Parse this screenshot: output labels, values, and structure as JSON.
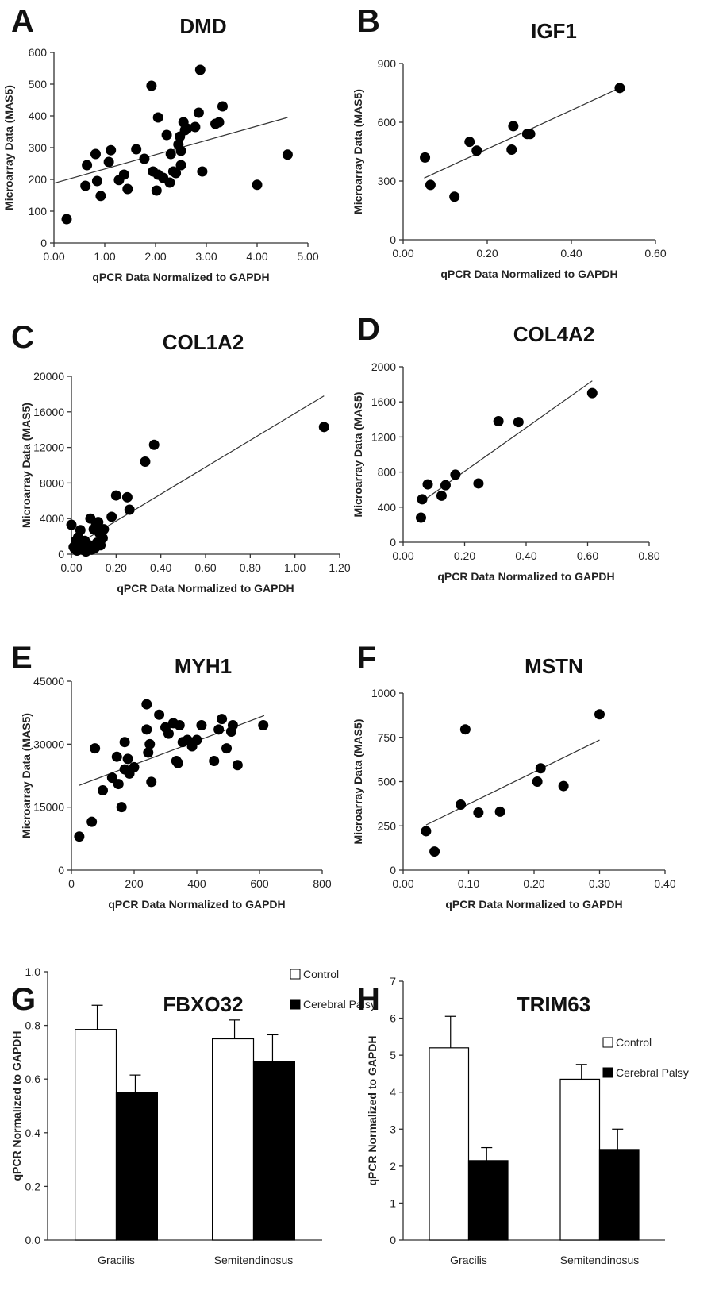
{
  "chart_data": [
    {
      "panel": "A",
      "title": "DMD",
      "type": "scatter",
      "xlabel": "qPCR Data Normalized to GAPDH",
      "ylabel": "Microarray Data (MAS5)",
      "xlim": [
        0,
        5
      ],
      "ylim": [
        0,
        600
      ],
      "xticks": [
        "0.00",
        "1.00",
        "2.00",
        "3.00",
        "4.00",
        "5.00"
      ],
      "yticks": [
        "0",
        "100",
        "200",
        "300",
        "400",
        "500",
        "600"
      ],
      "trendline": [
        [
          0,
          188
        ],
        [
          4.6,
          395
        ]
      ],
      "points": [
        [
          0.25,
          75
        ],
        [
          0.62,
          180
        ],
        [
          0.65,
          245
        ],
        [
          0.82,
          280
        ],
        [
          0.85,
          195
        ],
        [
          0.92,
          148
        ],
        [
          1.08,
          255
        ],
        [
          1.12,
          292
        ],
        [
          1.28,
          198
        ],
        [
          1.38,
          215
        ],
        [
          1.45,
          170
        ],
        [
          1.62,
          295
        ],
        [
          1.78,
          265
        ],
        [
          1.92,
          495
        ],
        [
          1.95,
          225
        ],
        [
          2.02,
          165
        ],
        [
          2.05,
          215
        ],
        [
          2.05,
          395
        ],
        [
          2.15,
          205
        ],
        [
          2.22,
          340
        ],
        [
          2.28,
          190
        ],
        [
          2.3,
          280
        ],
        [
          2.35,
          225
        ],
        [
          2.4,
          220
        ],
        [
          2.45,
          310
        ],
        [
          2.48,
          335
        ],
        [
          2.5,
          290
        ],
        [
          2.5,
          245
        ],
        [
          2.55,
          380
        ],
        [
          2.58,
          355
        ],
        [
          2.62,
          360
        ],
        [
          2.78,
          365
        ],
        [
          2.85,
          410
        ],
        [
          2.88,
          545
        ],
        [
          2.92,
          225
        ],
        [
          3.18,
          375
        ],
        [
          3.25,
          380
        ],
        [
          3.32,
          430
        ],
        [
          4.0,
          183
        ],
        [
          4.6,
          278
        ]
      ]
    },
    {
      "panel": "B",
      "title": "IGF1",
      "type": "scatter",
      "xlabel": "qPCR Data Normalized to GAPDH",
      "ylabel": "Microarray Data (MAS5)",
      "xlim": [
        0,
        0.6
      ],
      "ylim": [
        0,
        900
      ],
      "xticks": [
        "0.00",
        "0.20",
        "0.40",
        "0.60"
      ],
      "yticks": [
        "0",
        "300",
        "600",
        "900"
      ],
      "trendline": [
        [
          0.05,
          315
        ],
        [
          0.515,
          775
        ]
      ],
      "points": [
        [
          0.052,
          420
        ],
        [
          0.065,
          280
        ],
        [
          0.122,
          220
        ],
        [
          0.158,
          500
        ],
        [
          0.175,
          455
        ],
        [
          0.258,
          460
        ],
        [
          0.262,
          580
        ],
        [
          0.295,
          540
        ],
        [
          0.302,
          540
        ],
        [
          0.515,
          775
        ]
      ]
    },
    {
      "panel": "C",
      "title": "COL1A2",
      "type": "scatter",
      "xlabel": "qPCR Data Normalized to GAPDH",
      "ylabel": "Microarray Data (MAS5)",
      "xlim": [
        0,
        1.2
      ],
      "ylim": [
        0,
        20000
      ],
      "xticks": [
        "0.00",
        "0.20",
        "0.40",
        "0.60",
        "0.80",
        "1.00",
        "1.20"
      ],
      "yticks": [
        "0",
        "4000",
        "8000",
        "12000",
        "16000",
        "20000"
      ],
      "trendline": [
        [
          0,
          700
        ],
        [
          1.13,
          17800
        ]
      ],
      "points": [
        [
          0.0,
          3300
        ],
        [
          0.01,
          800
        ],
        [
          0.015,
          600
        ],
        [
          0.02,
          1500
        ],
        [
          0.025,
          400
        ],
        [
          0.03,
          1900
        ],
        [
          0.035,
          900
        ],
        [
          0.04,
          2700
        ],
        [
          0.045,
          1200
        ],
        [
          0.05,
          500
        ],
        [
          0.055,
          800
        ],
        [
          0.06,
          1500
        ],
        [
          0.065,
          300
        ],
        [
          0.07,
          600
        ],
        [
          0.08,
          1000
        ],
        [
          0.085,
          4000
        ],
        [
          0.09,
          500
        ],
        [
          0.1,
          2800
        ],
        [
          0.105,
          700
        ],
        [
          0.11,
          3200
        ],
        [
          0.115,
          1300
        ],
        [
          0.12,
          3600
        ],
        [
          0.125,
          2400
        ],
        [
          0.13,
          1000
        ],
        [
          0.14,
          1800
        ],
        [
          0.145,
          2800
        ],
        [
          0.18,
          4200
        ],
        [
          0.2,
          6600
        ],
        [
          0.25,
          6400
        ],
        [
          0.26,
          5000
        ],
        [
          0.33,
          10400
        ],
        [
          0.37,
          12300
        ],
        [
          1.13,
          14300
        ]
      ]
    },
    {
      "panel": "D",
      "title": "COL4A2",
      "type": "scatter",
      "xlabel": "qPCR Data Normalized to GAPDH",
      "ylabel": "Microarray Data (MAS5)",
      "xlim": [
        0,
        0.8
      ],
      "ylim": [
        0,
        2000
      ],
      "xticks": [
        "0.00",
        "0.20",
        "0.40",
        "0.60",
        "0.80"
      ],
      "yticks": [
        "0",
        "400",
        "800",
        "1200",
        "1600",
        "2000"
      ],
      "trendline": [
        [
          0.06,
          460
        ],
        [
          0.615,
          1840
        ]
      ],
      "points": [
        [
          0.058,
          280
        ],
        [
          0.062,
          490
        ],
        [
          0.08,
          660
        ],
        [
          0.125,
          530
        ],
        [
          0.138,
          650
        ],
        [
          0.17,
          770
        ],
        [
          0.245,
          670
        ],
        [
          0.31,
          1380
        ],
        [
          0.375,
          1370
        ],
        [
          0.615,
          1700
        ]
      ]
    },
    {
      "panel": "E",
      "title": "MYH1",
      "type": "scatter",
      "xlabel": "qPCR Data Normalized to GAPDH",
      "ylabel": "Microarray Data (MAS5)",
      "xlim": [
        0,
        800
      ],
      "ylim": [
        0,
        45000
      ],
      "xticks": [
        "0",
        "200",
        "400",
        "600",
        "800"
      ],
      "yticks": [
        "0",
        "15000",
        "30000",
        "45000"
      ],
      "trendline": [
        [
          25,
          20200
        ],
        [
          615,
          36800
        ]
      ],
      "points": [
        [
          25,
          8000
        ],
        [
          65,
          11500
        ],
        [
          75,
          29000
        ],
        [
          100,
          19000
        ],
        [
          130,
          22000
        ],
        [
          145,
          27000
        ],
        [
          150,
          20500
        ],
        [
          160,
          15000
        ],
        [
          170,
          24000
        ],
        [
          170,
          30500
        ],
        [
          180,
          26500
        ],
        [
          185,
          23000
        ],
        [
          200,
          24500
        ],
        [
          240,
          39500
        ],
        [
          240,
          33500
        ],
        [
          245,
          28000
        ],
        [
          250,
          30000
        ],
        [
          255,
          21000
        ],
        [
          280,
          37000
        ],
        [
          300,
          34000
        ],
        [
          310,
          32500
        ],
        [
          325,
          35000
        ],
        [
          335,
          26000
        ],
        [
          340,
          25500
        ],
        [
          345,
          34500
        ],
        [
          355,
          30500
        ],
        [
          370,
          31000
        ],
        [
          385,
          29500
        ],
        [
          400,
          31000
        ],
        [
          415,
          34500
        ],
        [
          455,
          26000
        ],
        [
          470,
          33500
        ],
        [
          480,
          36000
        ],
        [
          495,
          29000
        ],
        [
          510,
          33000
        ],
        [
          515,
          34500
        ],
        [
          530,
          25000
        ],
        [
          612,
          34500
        ]
      ]
    },
    {
      "panel": "F",
      "title": "MSTN",
      "type": "scatter",
      "xlabel": "qPCR Data Normalized to GAPDH",
      "ylabel": "Microarray Data (MAS5)",
      "xlim": [
        0,
        0.4
      ],
      "ylim": [
        0,
        1000
      ],
      "xticks": [
        "0.00",
        "0.10",
        "0.20",
        "0.30",
        "0.40"
      ],
      "yticks": [
        "0",
        "250",
        "500",
        "750",
        "1000"
      ],
      "trendline": [
        [
          0.035,
          255
        ],
        [
          0.3,
          735
        ]
      ],
      "points": [
        [
          0.035,
          220
        ],
        [
          0.048,
          105
        ],
        [
          0.088,
          370
        ],
        [
          0.095,
          795
        ],
        [
          0.115,
          325
        ],
        [
          0.148,
          330
        ],
        [
          0.205,
          500
        ],
        [
          0.21,
          575
        ],
        [
          0.245,
          475
        ],
        [
          0.3,
          880
        ]
      ]
    },
    {
      "panel": "G",
      "title": "FBXO32",
      "type": "bar",
      "xlabel": "",
      "ylabel": "qPCR Normalized to GAPDH",
      "ylim": [
        0,
        1.0
      ],
      "yticks": [
        "0.0",
        "0.2",
        "0.4",
        "0.6",
        "0.8",
        "1.0"
      ],
      "categories": [
        "Gracilis",
        "Semitendinosus"
      ],
      "series": [
        {
          "name": "Control",
          "values": [
            0.785,
            0.75
          ],
          "errors": [
            0.09,
            0.07
          ],
          "color": "#ffffff"
        },
        {
          "name": "Cerebral Palsy",
          "values": [
            0.55,
            0.665
          ],
          "errors": [
            0.065,
            0.1
          ],
          "color": "#000000"
        }
      ]
    },
    {
      "panel": "H",
      "title": "TRIM63",
      "type": "bar",
      "xlabel": "",
      "ylabel": "qPCR Normalized to GAPDH",
      "ylim": [
        0,
        7
      ],
      "yticks": [
        "0",
        "1",
        "2",
        "3",
        "4",
        "5",
        "6",
        "7"
      ],
      "categories": [
        "Gracilis",
        "Semitendinosus"
      ],
      "series": [
        {
          "name": "Control",
          "values": [
            5.2,
            4.35
          ],
          "errors": [
            0.85,
            0.4
          ],
          "color": "#ffffff"
        },
        {
          "name": "Cerebral Palsy",
          "values": [
            2.15,
            2.45
          ],
          "errors": [
            0.35,
            0.55
          ],
          "color": "#000000"
        }
      ]
    }
  ]
}
